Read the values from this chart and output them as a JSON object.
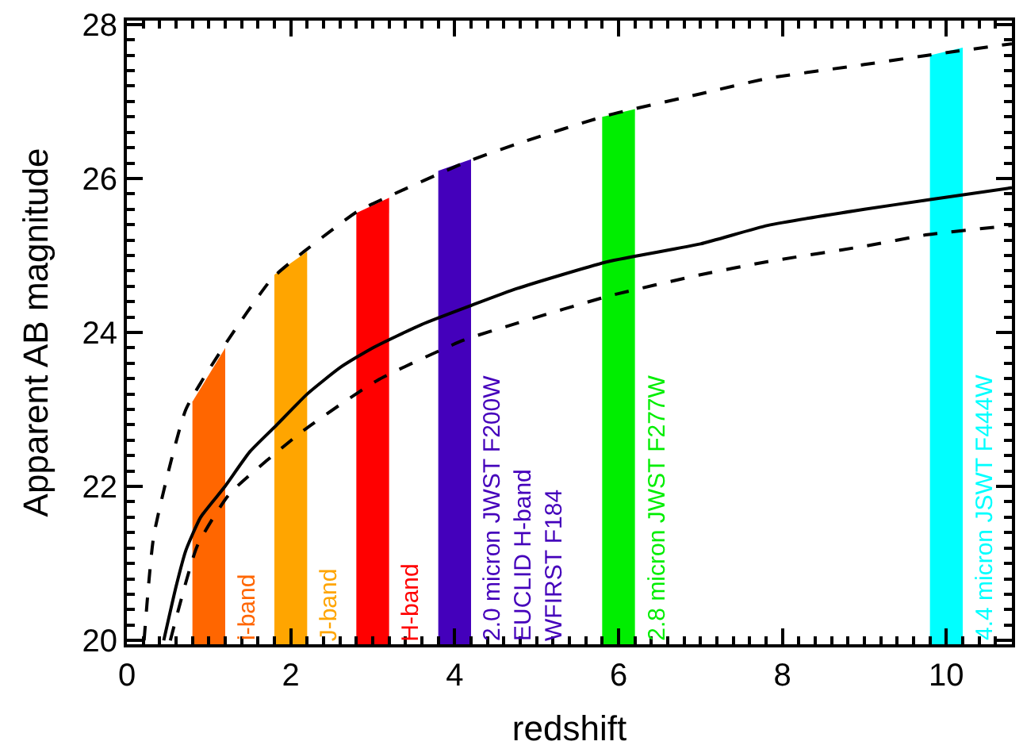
{
  "chart_data": {
    "type": "line",
    "xlabel": "redshift",
    "ylabel": "Apparent AB magnitude",
    "xlim": [
      0,
      10.8
    ],
    "ylim": [
      19.95,
      28.05
    ],
    "xticks": [
      0,
      2,
      4,
      6,
      8,
      10
    ],
    "yticks": [
      20,
      22,
      24,
      26,
      28
    ],
    "series": [
      {
        "type": "area",
        "name": "i-band",
        "color": "#ff6600",
        "x": [
          0.8,
          1.2
        ],
        "values": [
          23.1,
          23.8
        ]
      },
      {
        "type": "area",
        "name": "J-band",
        "color": "#ffa500",
        "x": [
          1.8,
          2.2
        ],
        "values": [
          24.75,
          25.05
        ]
      },
      {
        "type": "area",
        "name": "H-band",
        "color": "#ff0000",
        "x": [
          2.8,
          3.2
        ],
        "values": [
          25.55,
          25.75
        ]
      },
      {
        "type": "area",
        "name": "2.0 micron JWST F200W\nEUCLID H-band\nWFIRST F184",
        "color": "#4400bb",
        "x": [
          3.8,
          4.2
        ],
        "values": [
          26.1,
          26.25
        ]
      },
      {
        "type": "area",
        "name": "2.8 micron JWST F277W",
        "color": "#00ee00",
        "x": [
          5.8,
          6.2
        ],
        "values": [
          26.8,
          26.9
        ]
      },
      {
        "type": "area",
        "name": "4.4 micron JSWT F444W",
        "color": "#00ffff",
        "x": [
          9.8,
          10.2
        ],
        "values": [
          27.6,
          27.7
        ]
      },
      {
        "color": "#000000",
        "line_style": "solid",
        "x": [
          0.45,
          0.6,
          0.72,
          0.9,
          1.19,
          1.5,
          1.83,
          2.2,
          2.61,
          3.0,
          3.59,
          4.2,
          4.76,
          5.87,
          7,
          7.82,
          9,
          9.77,
          10.8
        ],
        "values": [
          20,
          20.7,
          21.17,
          21.6,
          21.99,
          22.45,
          22.8,
          23.2,
          23.55,
          23.8,
          24.1,
          24.35,
          24.57,
          24.92,
          25.15,
          25.39,
          25.6,
          25.72,
          25.88
        ]
      },
      {
        "color": "#000000",
        "line_style": "dashed",
        "x": [
          0.21,
          0.33,
          0.72,
          1.19,
          1.77,
          2.16,
          2.81,
          3.14,
          4.11,
          4.76,
          5.87,
          7,
          7.82,
          9,
          9.77,
          10.8
        ],
        "values": [
          20,
          21.37,
          23.0,
          23.83,
          24.7,
          25.05,
          25.57,
          25.74,
          26.2,
          26.45,
          26.82,
          27.1,
          27.3,
          27.48,
          27.6,
          27.75
        ]
      },
      {
        "color": "#000000",
        "line_style": "dashed",
        "x": [
          0.53,
          0.86,
          1.25,
          2.16,
          3.06,
          4.11,
          4.76,
          5.87,
          7,
          7.82,
          9,
          9.77,
          10.8
        ],
        "values": [
          20,
          21.23,
          21.9,
          22.73,
          23.38,
          23.9,
          24.12,
          24.47,
          24.75,
          24.92,
          25.12,
          25.27,
          25.39
        ]
      }
    ]
  }
}
